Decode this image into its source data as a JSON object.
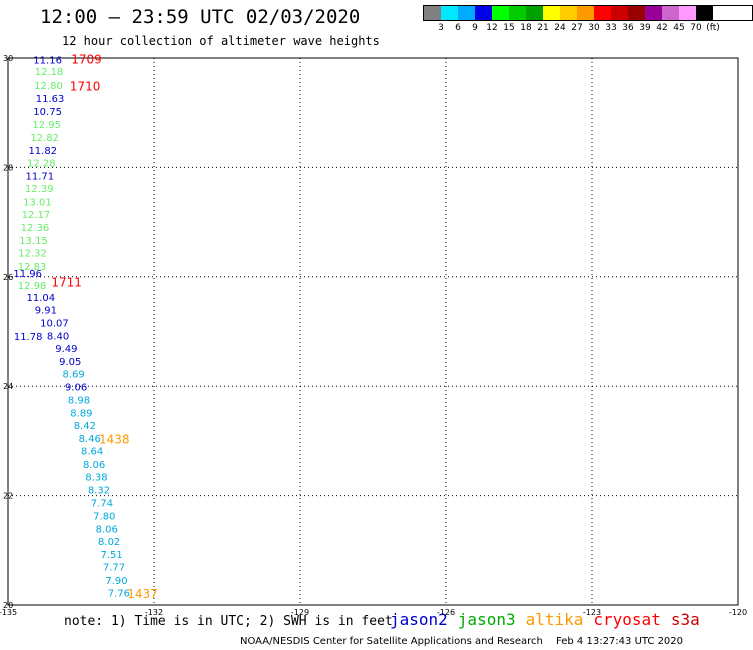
{
  "header": {
    "title": "12:00 – 23:59 UTC 02/03/2020",
    "subtitle": "12 hour collection of altimeter wave heights"
  },
  "colorbar": {
    "unit": "(ft)",
    "colors": [
      "#808080",
      "#00e8ff",
      "#00aaff",
      "#0000e6",
      "#00ff00",
      "#00cc00",
      "#00a000",
      "#ffff00",
      "#ffcc00",
      "#ff9900",
      "#ff0000",
      "#cc0000",
      "#990000",
      "#990099",
      "#cc66cc",
      "#ff99ff",
      "#000000"
    ],
    "labels": [
      "3",
      "6",
      "9",
      "12",
      "15",
      "18",
      "21",
      "24",
      "27",
      "30",
      "33",
      "36",
      "39",
      "42",
      "45",
      "70"
    ]
  },
  "chart_data": {
    "type": "scatter",
    "xlim": [
      -135,
      -120
    ],
    "ylim": [
      20,
      30
    ],
    "x_ticks": [
      "-135",
      "-132",
      "-129",
      "-126",
      "-123",
      "-120"
    ],
    "y_ticks": [
      "20",
      "22",
      "24",
      "26",
      "28",
      "30"
    ],
    "grid": true,
    "colors": {
      "jason2": "#0000cc",
      "jason3": "#00cc00",
      "altika": "#ff9900",
      "cryosat": "#ff0000",
      "s3a": "#cc0000",
      "light_green": "#66ee66",
      "cyan": "#00aadd"
    },
    "labels": [
      {
        "text": "11.16",
        "lon": -134.48,
        "lat": 29.97,
        "color": "#0000cc"
      },
      {
        "text": "12.18",
        "lon": -134.45,
        "lat": 29.76,
        "color": "#66ee66"
      },
      {
        "text": "12.80",
        "lon": -134.46,
        "lat": 29.51,
        "color": "#66ee66"
      },
      {
        "text": "11.63",
        "lon": -134.43,
        "lat": 29.27,
        "color": "#0000cc"
      },
      {
        "text": "10.75",
        "lon": -134.48,
        "lat": 29.03,
        "color": "#0000cc"
      },
      {
        "text": "12.95",
        "lon": -134.5,
        "lat": 28.79,
        "color": "#66ee66"
      },
      {
        "text": "12.82",
        "lon": -134.54,
        "lat": 28.56,
        "color": "#66ee66"
      },
      {
        "text": "11.82",
        "lon": -134.58,
        "lat": 28.32,
        "color": "#0000cc"
      },
      {
        "text": "12.28",
        "lon": -134.61,
        "lat": 28.09,
        "color": "#66ee66"
      },
      {
        "text": "11.71",
        "lon": -134.64,
        "lat": 27.85,
        "color": "#0000cc"
      },
      {
        "text": "12.39",
        "lon": -134.65,
        "lat": 27.62,
        "color": "#66ee66"
      },
      {
        "text": "13.01",
        "lon": -134.69,
        "lat": 27.38,
        "color": "#66ee66"
      },
      {
        "text": "12.17",
        "lon": -134.72,
        "lat": 27.15,
        "color": "#66ee66"
      },
      {
        "text": "12.36",
        "lon": -134.74,
        "lat": 26.91,
        "color": "#66ee66"
      },
      {
        "text": "13.15",
        "lon": -134.77,
        "lat": 26.67,
        "color": "#66ee66"
      },
      {
        "text": "12.32",
        "lon": -134.79,
        "lat": 26.44,
        "color": "#66ee66"
      },
      {
        "text": "12.83",
        "lon": -134.8,
        "lat": 26.2,
        "color": "#66ee66"
      },
      {
        "text": "11.96",
        "lon": -134.89,
        "lat": 26.07,
        "color": "#0000cc"
      },
      {
        "text": "12.98",
        "lon": -134.8,
        "lat": 25.85,
        "color": "#66ee66"
      },
      {
        "text": "11.04",
        "lon": -134.62,
        "lat": 25.63,
        "color": "#0000cc"
      },
      {
        "text": "9.91",
        "lon": -134.45,
        "lat": 25.4,
        "color": "#0000cc"
      },
      {
        "text": "10.07",
        "lon": -134.34,
        "lat": 25.16,
        "color": "#0000cc"
      },
      {
        "text": "8.40",
        "lon": -134.2,
        "lat": 24.93,
        "color": "#0000cc"
      },
      {
        "text": "11.78",
        "lon": -134.88,
        "lat": 24.92,
        "color": "#0000cc"
      },
      {
        "text": "9.49",
        "lon": -134.03,
        "lat": 24.7,
        "color": "#0000cc"
      },
      {
        "text": "9.05",
        "lon": -133.95,
        "lat": 24.46,
        "color": "#0000cc"
      },
      {
        "text": "8.69",
        "lon": -133.88,
        "lat": 24.23,
        "color": "#00aadd"
      },
      {
        "text": "9.06",
        "lon": -133.83,
        "lat": 23.99,
        "color": "#0000cc"
      },
      {
        "text": "8.98",
        "lon": -133.77,
        "lat": 23.76,
        "color": "#00aadd"
      },
      {
        "text": "8.89",
        "lon": -133.72,
        "lat": 23.52,
        "color": "#00aadd"
      },
      {
        "text": "8.42",
        "lon": -133.65,
        "lat": 23.29,
        "color": "#00aadd"
      },
      {
        "text": "8.46",
        "lon": -133.55,
        "lat": 23.05,
        "color": "#00aadd"
      },
      {
        "text": "8.64",
        "lon": -133.5,
        "lat": 22.82,
        "color": "#00aadd"
      },
      {
        "text": "8.06",
        "lon": -133.46,
        "lat": 22.58,
        "color": "#00aadd"
      },
      {
        "text": "8.38",
        "lon": -133.41,
        "lat": 22.35,
        "color": "#00aadd"
      },
      {
        "text": "8.32",
        "lon": -133.36,
        "lat": 22.11,
        "color": "#00aadd"
      },
      {
        "text": "7.74",
        "lon": -133.3,
        "lat": 21.87,
        "color": "#00aadd"
      },
      {
        "text": "7.80",
        "lon": -133.25,
        "lat": 21.64,
        "color": "#00aadd"
      },
      {
        "text": "8.06",
        "lon": -133.2,
        "lat": 21.4,
        "color": "#00aadd"
      },
      {
        "text": "8.02",
        "lon": -133.15,
        "lat": 21.17,
        "color": "#00aadd"
      },
      {
        "text": "7.51",
        "lon": -133.1,
        "lat": 20.93,
        "color": "#00aadd"
      },
      {
        "text": "7.77",
        "lon": -133.05,
        "lat": 20.7,
        "color": "#00aadd"
      },
      {
        "text": "7.90",
        "lon": -133.0,
        "lat": 20.46,
        "color": "#00aadd"
      },
      {
        "text": "7.76",
        "lon": -132.95,
        "lat": 20.23,
        "color": "#00aadd"
      }
    ],
    "times": [
      {
        "text": "1709",
        "lon": -133.7,
        "lat": 29.97,
        "color": "#ff0000"
      },
      {
        "text": "1710",
        "lon": -133.73,
        "lat": 29.48,
        "color": "#ff0000"
      },
      {
        "text": "1711",
        "lon": -134.11,
        "lat": 25.9,
        "color": "#ff0000"
      },
      {
        "text": "1438",
        "lon": -133.13,
        "lat": 23.03,
        "color": "#ff9900"
      },
      {
        "text": "1437",
        "lon": -132.55,
        "lat": 20.2,
        "color": "#ff9900"
      }
    ]
  },
  "footer": {
    "note": "note: 1) Time is in UTC; 2) SWH is in feet",
    "legend": [
      {
        "name": "jason2",
        "color": "#0000cc"
      },
      {
        "name": "jason3",
        "color": "#00aa00"
      },
      {
        "name": "altika",
        "color": "#ff9900"
      },
      {
        "name": "cryosat",
        "color": "#ff0000"
      },
      {
        "name": "s3a",
        "color": "#cc0000"
      }
    ],
    "credit_org": "NOAA/NESDIS Center for Satellite Applications and Research",
    "credit_time": "Feb  4 13:27:43 UTC 2020"
  }
}
